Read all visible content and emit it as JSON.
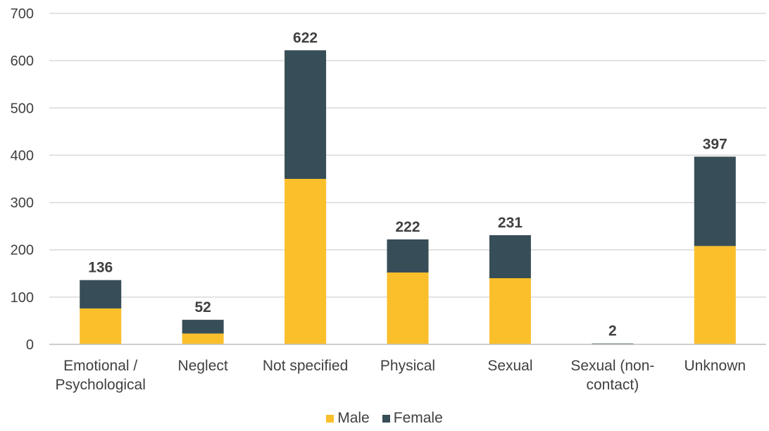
{
  "chart_data": {
    "type": "bar",
    "stacked": true,
    "categories": [
      [
        "Emotional /",
        "Psychological"
      ],
      [
        "Neglect"
      ],
      [
        "Not specified"
      ],
      [
        "Physical"
      ],
      [
        "Sexual"
      ],
      [
        "Sexual (non-",
        "contact)"
      ],
      [
        "Unknown"
      ]
    ],
    "series": [
      {
        "name": "Male",
        "color": "#FBBF2B",
        "values": [
          76,
          23,
          350,
          152,
          140,
          0,
          208
        ]
      },
      {
        "name": "Female",
        "color": "#374D57",
        "values": [
          60,
          29,
          272,
          70,
          91,
          2,
          189
        ]
      }
    ],
    "totals": [
      "136",
      "52",
      "622",
      "222",
      "231",
      "2",
      "397"
    ],
    "ylim": [
      0,
      700
    ],
    "yticks": [
      "0",
      "100",
      "200",
      "300",
      "400",
      "500",
      "600",
      "700"
    ],
    "grid": true,
    "legend_position": "bottom"
  }
}
